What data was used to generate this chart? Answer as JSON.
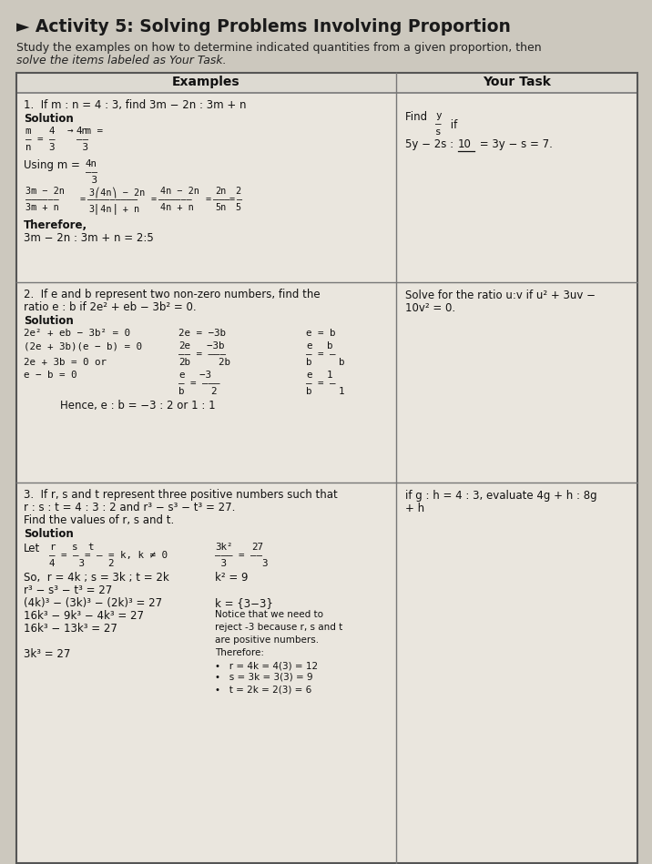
{
  "title": "► Activity 5: Solving Problems Involving Proportion",
  "subtitle1": "Study the examples on how to determine indicated quantities from a given proportion, then",
  "subtitle2": "solve the items labeled as ​Your Task.",
  "bg_color": "#ccc8be",
  "table_bg": "#eae6de",
  "header_bg": "#dddad2",
  "col_header_left": "Examples",
  "col_header_right": "Your Task"
}
